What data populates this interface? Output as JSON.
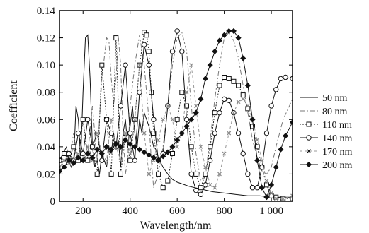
{
  "chart_data": {
    "type": "line",
    "title": "",
    "xlabel": "Wavelength/nm",
    "ylabel": "Coefficient",
    "xlim": [
      100,
      1090
    ],
    "ylim": [
      0,
      0.14
    ],
    "xticks": [
      200,
      400,
      600,
      800,
      1000
    ],
    "yticks": [
      0,
      0.02,
      0.04,
      0.06,
      0.08,
      0.1,
      0.12,
      0.14
    ],
    "ytick_labels": [
      "0",
      "0.02",
      "0.04",
      "0.06",
      "0.08",
      "0.10",
      "0.12",
      "0.14"
    ],
    "xtick_labels": [
      "200",
      "400",
      "600",
      "800",
      "1 000"
    ],
    "grid": false,
    "legend_position": "right",
    "series": [
      {
        "name": "50 nm",
        "style": "solid",
        "marker": "none",
        "x": [
          100,
          115,
          130,
          140,
          150,
          160,
          170,
          180,
          190,
          200,
          210,
          220,
          230,
          240,
          250,
          260,
          270,
          280,
          290,
          300,
          310,
          320,
          330,
          340,
          350,
          360,
          370,
          380,
          390,
          400,
          410,
          420,
          430,
          440,
          450,
          460,
          470,
          480,
          490,
          500,
          510,
          520,
          540,
          560,
          580,
          600,
          650,
          700,
          750,
          800,
          850,
          900,
          950,
          1000,
          1050,
          1090
        ],
        "y": [
          0.03,
          0.035,
          0.04,
          0.03,
          0.025,
          0.028,
          0.07,
          0.06,
          0.03,
          0.08,
          0.12,
          0.122,
          0.09,
          0.04,
          0.025,
          0.03,
          0.02,
          0.035,
          0.03,
          0.025,
          0.04,
          0.035,
          0.05,
          0.04,
          0.045,
          0.025,
          0.05,
          0.06,
          0.04,
          0.055,
          0.07,
          0.05,
          0.04,
          0.06,
          0.05,
          0.065,
          0.06,
          0.055,
          0.048,
          0.04,
          0.038,
          0.032,
          0.025,
          0.02,
          0.016,
          0.014,
          0.011,
          0.009,
          0.007,
          0.006,
          0.005,
          0.004,
          0.004,
          0.003,
          0.003,
          0.003
        ]
      },
      {
        "name": "80 nm",
        "style": "dashdot",
        "marker": "none",
        "x": [
          100,
          120,
          140,
          160,
          180,
          200,
          220,
          240,
          260,
          280,
          300,
          310,
          320,
          330,
          340,
          350,
          360,
          370,
          380,
          390,
          400,
          420,
          440,
          460,
          480,
          490,
          500,
          520,
          540,
          560,
          580,
          600,
          620,
          640,
          660,
          680,
          700,
          720,
          740,
          760,
          780,
          800,
          820,
          840,
          860,
          880,
          900,
          920,
          940,
          960,
          980,
          1000,
          1020,
          1050,
          1090
        ],
        "y": [
          0.025,
          0.03,
          0.028,
          0.05,
          0.03,
          0.06,
          0.035,
          0.07,
          0.03,
          0.09,
          0.12,
          0.118,
          0.09,
          0.07,
          0.09,
          0.12,
          0.1,
          0.05,
          0.02,
          0.03,
          0.07,
          0.1,
          0.122,
          0.1,
          0.06,
          0.03,
          0.01,
          0.02,
          0.04,
          0.07,
          0.1,
          0.12,
          0.124,
          0.11,
          0.07,
          0.035,
          0.015,
          0.02,
          0.045,
          0.075,
          0.1,
          0.12,
          0.124,
          0.118,
          0.105,
          0.085,
          0.065,
          0.045,
          0.032,
          0.022,
          0.02,
          0.025,
          0.04,
          0.06,
          0.075
        ]
      },
      {
        "name": "110 nm",
        "style": "dotted",
        "marker": "square",
        "x": [
          100,
          120,
          140,
          160,
          180,
          200,
          220,
          240,
          260,
          280,
          300,
          320,
          340,
          360,
          380,
          400,
          420,
          440,
          460,
          470,
          480,
          490,
          500,
          520,
          540,
          560,
          580,
          600,
          620,
          640,
          660,
          680,
          700,
          720,
          740,
          760,
          780,
          800,
          820,
          840,
          860,
          880,
          900,
          920,
          940,
          960,
          980,
          1000,
          1020,
          1050,
          1090
        ],
        "y": [
          0.03,
          0.035,
          0.03,
          0.04,
          0.03,
          0.06,
          0.03,
          0.04,
          0.02,
          0.1,
          0.06,
          0.02,
          0.12,
          0.02,
          0.05,
          0.03,
          0.06,
          0.1,
          0.124,
          0.122,
          0.11,
          0.08,
          0.05,
          0.02,
          0.01,
          0.015,
          0.035,
          0.06,
          0.08,
          0.07,
          0.04,
          0.02,
          0.01,
          0.02,
          0.04,
          0.065,
          0.085,
          0.091,
          0.09,
          0.088,
          0.085,
          0.078,
          0.068,
          0.055,
          0.04,
          0.025,
          0.012,
          0.004,
          0.003,
          0.002,
          0.002
        ]
      },
      {
        "name": "140 nm",
        "style": "solid",
        "marker": "circle",
        "x": [
          100,
          120,
          140,
          160,
          180,
          200,
          220,
          240,
          260,
          280,
          300,
          320,
          340,
          360,
          380,
          400,
          420,
          440,
          460,
          480,
          500,
          520,
          540,
          560,
          580,
          600,
          620,
          640,
          660,
          680,
          700,
          720,
          740,
          760,
          780,
          800,
          820,
          840,
          860,
          880,
          900,
          920,
          940,
          960,
          980,
          1000,
          1020,
          1040,
          1060,
          1090
        ],
        "y": [
          0.03,
          0.028,
          0.035,
          0.03,
          0.05,
          0.035,
          0.06,
          0.04,
          0.05,
          0.03,
          0.06,
          0.05,
          0.04,
          0.07,
          0.1,
          0.05,
          0.03,
          0.08,
          0.115,
          0.1,
          0.06,
          0.03,
          0.035,
          0.07,
          0.11,
          0.125,
          0.11,
          0.06,
          0.02,
          0.008,
          0.005,
          0.012,
          0.03,
          0.05,
          0.065,
          0.075,
          0.074,
          0.065,
          0.05,
          0.035,
          0.02,
          0.01,
          0.01,
          0.025,
          0.05,
          0.07,
          0.082,
          0.09,
          0.091,
          0.09
        ]
      },
      {
        "name": "170 nm",
        "style": "dashed-gray",
        "marker": "x",
        "x": [
          100,
          120,
          140,
          160,
          180,
          200,
          220,
          240,
          260,
          280,
          300,
          320,
          340,
          360,
          380,
          400,
          420,
          440,
          460,
          480,
          500,
          520,
          540,
          560,
          580,
          600,
          620,
          640,
          660,
          680,
          700,
          720,
          740,
          760,
          780,
          800,
          820,
          840,
          860,
          880,
          900,
          920,
          940,
          960,
          980,
          1000,
          1020,
          1050,
          1090
        ],
        "y": [
          0.025,
          0.03,
          0.028,
          0.03,
          0.035,
          0.03,
          0.04,
          0.03,
          0.05,
          0.035,
          0.03,
          0.06,
          0.04,
          0.03,
          0.05,
          0.035,
          0.06,
          0.1,
          0.05,
          0.02,
          0.03,
          0.045,
          0.06,
          0.07,
          0.06,
          0.04,
          0.05,
          0.08,
          0.1,
          0.07,
          0.04,
          0.025,
          0.012,
          0.01,
          0.02,
          0.035,
          0.05,
          0.065,
          0.073,
          0.075,
          0.07,
          0.06,
          0.045,
          0.03,
          0.015,
          0.006,
          0.002,
          0.002,
          0.004
        ]
      },
      {
        "name": "200 nm",
        "style": "solid",
        "marker": "plus",
        "x": [
          100,
          120,
          140,
          160,
          180,
          200,
          220,
          240,
          260,
          280,
          300,
          320,
          340,
          360,
          380,
          400,
          420,
          440,
          460,
          480,
          500,
          520,
          540,
          560,
          580,
          600,
          620,
          640,
          660,
          680,
          700,
          720,
          740,
          760,
          780,
          800,
          820,
          840,
          860,
          880,
          900,
          920,
          940,
          960,
          980,
          1000,
          1020,
          1040,
          1060,
          1090
        ],
        "y": [
          0.022,
          0.025,
          0.03,
          0.028,
          0.032,
          0.03,
          0.035,
          0.032,
          0.038,
          0.035,
          0.04,
          0.038,
          0.042,
          0.04,
          0.045,
          0.042,
          0.04,
          0.038,
          0.036,
          0.034,
          0.032,
          0.03,
          0.033,
          0.036,
          0.04,
          0.045,
          0.05,
          0.055,
          0.06,
          0.065,
          0.075,
          0.09,
          0.1,
          0.11,
          0.118,
          0.122,
          0.125,
          0.125,
          0.12,
          0.105,
          0.085,
          0.06,
          0.03,
          0.01,
          0.003,
          0.012,
          0.025,
          0.038,
          0.048,
          0.058
        ]
      }
    ]
  }
}
